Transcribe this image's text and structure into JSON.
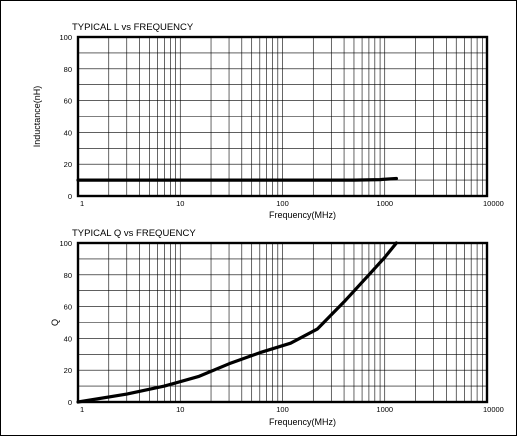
{
  "chart_data": [
    {
      "type": "line",
      "title": "TYPICAL L vs FREQUENCY",
      "xlabel": "Frequency(MHz)",
      "ylabel": "Inductance(nH)",
      "x_scale": "log",
      "xlim": [
        1,
        10000
      ],
      "ylim": [
        0,
        100
      ],
      "x_ticks": [
        1,
        10,
        100,
        1000,
        10000
      ],
      "x_tick_labels": [
        "1",
        "10",
        "100",
        "1000",
        "10000"
      ],
      "y_ticks": [
        0,
        20,
        40,
        60,
        80,
        100
      ],
      "y_tick_labels": [
        "0",
        "20",
        "40",
        "60",
        "80",
        "100"
      ],
      "grid": true,
      "series": [
        {
          "x": [
            1,
            10,
            100,
            500,
            900,
            1300
          ],
          "y": [
            10,
            10,
            10,
            10,
            10.3,
            11
          ]
        }
      ]
    },
    {
      "type": "line",
      "title": "TYPICAL Q vs FREQUENCY",
      "xlabel": "Frequency(MHz)",
      "ylabel": "Q",
      "x_scale": "log",
      "xlim": [
        1,
        10000
      ],
      "ylim": [
        0,
        100
      ],
      "x_ticks": [
        1,
        10,
        100,
        1000,
        10000
      ],
      "x_tick_labels": [
        "1",
        "10",
        "100",
        "1000",
        "10000"
      ],
      "y_ticks": [
        0,
        20,
        40,
        60,
        80,
        100
      ],
      "y_tick_labels": [
        "0",
        "20",
        "40",
        "60",
        "80",
        "100"
      ],
      "grid": true,
      "series": [
        {
          "x": [
            1,
            3,
            7,
            15,
            30,
            60,
            120,
            220,
            400,
            700,
            1000,
            1300
          ],
          "y": [
            0,
            5,
            10,
            16,
            24,
            31,
            37,
            46,
            63,
            80,
            91,
            100
          ]
        }
      ]
    }
  ]
}
